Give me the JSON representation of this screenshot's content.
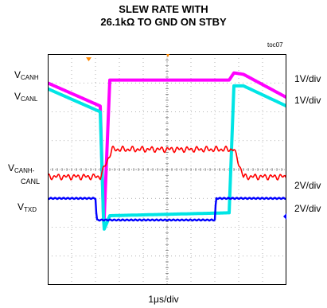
{
  "title_line1": "SLEW RATE WITH",
  "title_line2": "26.1kΩ TO GND ON STBY",
  "code": "toc07",
  "channels": [
    {
      "label_main": "V",
      "label_sub": "CANH",
      "scale": "1V/div",
      "color": "#ff00ff"
    },
    {
      "label_main": "V",
      "label_sub": "CANL",
      "scale": "1V/div",
      "color": "#00e5e5"
    },
    {
      "label_main": "V",
      "label_sub": "CANH-",
      "label_line2": "CANL",
      "scale": "2V/div",
      "color": "#ff0000"
    },
    {
      "label_main": "V",
      "label_sub": "TXD",
      "scale": "2V/div",
      "color": "#0000ff"
    }
  ],
  "chart_data": {
    "type": "line",
    "xlabel": "1μs/div",
    "x_divisions": 10,
    "y_divisions": 8,
    "grid": true,
    "series": [
      {
        "name": "VCANH",
        "units": "div",
        "points": [
          [
            0,
            7.0
          ],
          [
            2.2,
            6.2
          ],
          [
            2.35,
            2.0
          ],
          [
            2.6,
            7.1
          ],
          [
            7.6,
            7.1
          ],
          [
            7.8,
            7.35
          ],
          [
            8.2,
            7.3
          ],
          [
            10,
            6.5
          ]
        ]
      },
      {
        "name": "VCANL",
        "units": "div",
        "points": [
          [
            0,
            6.8
          ],
          [
            2.2,
            6.0
          ],
          [
            2.35,
            1.9
          ],
          [
            2.6,
            2.4
          ],
          [
            7.6,
            2.5
          ],
          [
            7.8,
            6.9
          ],
          [
            8.2,
            6.9
          ],
          [
            10,
            6.2
          ]
        ]
      },
      {
        "name": "VCANH-CANL",
        "units": "div",
        "points": [
          [
            0,
            3.75
          ],
          [
            2.2,
            3.75
          ],
          [
            2.7,
            4.7
          ],
          [
            7.8,
            4.7
          ],
          [
            8.2,
            3.75
          ],
          [
            10,
            3.75
          ]
        ]
      },
      {
        "name": "VTXD",
        "units": "div",
        "points": [
          [
            0,
            3.0
          ],
          [
            2.0,
            3.0
          ],
          [
            2.05,
            2.25
          ],
          [
            7.0,
            2.25
          ],
          [
            7.05,
            3.0
          ],
          [
            10,
            3.0
          ]
        ]
      }
    ]
  }
}
